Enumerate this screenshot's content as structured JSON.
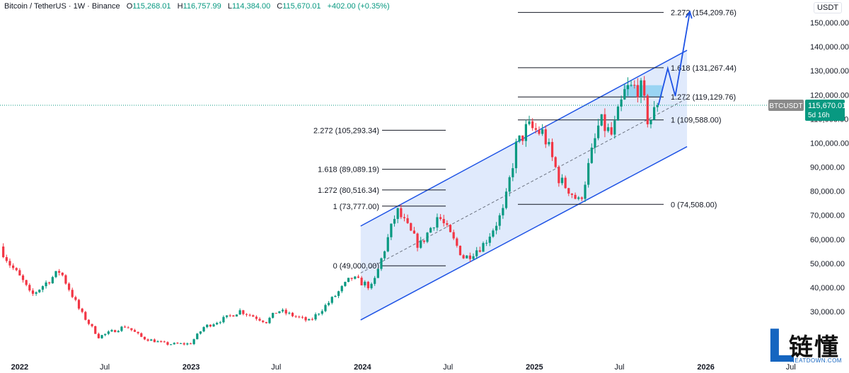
{
  "header": {
    "symbol": "Bitcoin / TetherUS · 1W · Binance",
    "open_label": "O",
    "open": "115,268.01",
    "high_label": "H",
    "high": "116,757.99",
    "low_label": "L",
    "low": "114,384.00",
    "close_label": "C",
    "close": "115,670.01",
    "change": "+402.00 (+0.35%)"
  },
  "currency": "USDT",
  "price_tag": {
    "symbol": "BTCUSDT",
    "price": "115,670.01",
    "countdown": "5d 16h"
  },
  "logo": {
    "text": "链懂",
    "domain": "NEATDOWN.COM"
  },
  "colors": {
    "up": "#089981",
    "down": "#f23645",
    "channel_line": "#1e53e5",
    "channel_fill": "#dbe6fb",
    "arrow": "#1e53e5",
    "zone": "#7ccbf0"
  },
  "chart_data": {
    "type": "candlestick",
    "title": "",
    "xlabel": "",
    "ylabel": "",
    "ylim": [
      20000,
      160000
    ],
    "yticks": [
      30000,
      40000,
      50000,
      60000,
      70000,
      80000,
      90000,
      100000,
      110000,
      120000,
      130000,
      140000,
      150000
    ],
    "ytick_labels": [
      "30,000.00",
      "40,000.00",
      "50,000.00",
      "60,000.00",
      "70,000.00",
      "80,000.00",
      "90,000.00",
      "100,000.00",
      "110,000.00",
      "120,000.00",
      "130,000.00",
      "140,000.00",
      "150,000.00"
    ],
    "xlim": [
      "2021-11-20",
      "2026-07-30"
    ],
    "xticks": [
      {
        "date": "2022-01-01",
        "label": "2022"
      },
      {
        "date": "2022-07-01",
        "label": "Jul"
      },
      {
        "date": "2023-01-01",
        "label": "2023"
      },
      {
        "date": "2023-07-01",
        "label": "Jul"
      },
      {
        "date": "2024-01-01",
        "label": "2024"
      },
      {
        "date": "2024-07-01",
        "label": "Jul"
      },
      {
        "date": "2025-01-01",
        "label": "2025"
      },
      {
        "date": "2025-07-01",
        "label": "Jul"
      },
      {
        "date": "2026-01-01",
        "label": "2026"
      },
      {
        "date": "2026-07-01",
        "label": "Jul"
      }
    ],
    "price_path": [
      [
        "2021-11-20",
        57000
      ],
      [
        "2021-12-10",
        50000
      ],
      [
        "2022-01-10",
        42000
      ],
      [
        "2022-01-25",
        36500
      ],
      [
        "2022-03-28",
        47000
      ],
      [
        "2022-05-10",
        30000
      ],
      [
        "2022-06-18",
        19500
      ],
      [
        "2022-08-15",
        24000
      ],
      [
        "2022-09-20",
        19000
      ],
      [
        "2022-11-10",
        16500
      ],
      [
        "2022-12-30",
        16600
      ],
      [
        "2023-01-28",
        23500
      ],
      [
        "2023-03-18",
        27500
      ],
      [
        "2023-04-15",
        30300
      ],
      [
        "2023-06-10",
        25800
      ],
      [
        "2023-07-05",
        30500
      ],
      [
        "2023-09-10",
        25900
      ],
      [
        "2023-10-25",
        34500
      ],
      [
        "2023-12-08",
        44000
      ],
      [
        "2024-01-22",
        40000
      ],
      [
        "2024-03-14",
        72000
      ],
      [
        "2024-05-01",
        57000
      ],
      [
        "2024-06-10",
        70000
      ],
      [
        "2024-08-05",
        52000
      ],
      [
        "2024-09-15",
        58000
      ],
      [
        "2024-10-28",
        72000
      ],
      [
        "2024-11-22",
        98000
      ],
      [
        "2024-12-17",
        106500
      ],
      [
        "2025-01-20",
        104000
      ],
      [
        "2025-02-25",
        84000
      ],
      [
        "2025-03-15",
        81000
      ],
      [
        "2025-04-07",
        75000
      ],
      [
        "2025-05-20",
        109000
      ],
      [
        "2025-06-15",
        103000
      ],
      [
        "2025-07-14",
        122000
      ],
      [
        "2025-08-14",
        123500
      ],
      [
        "2025-09-01",
        108500
      ],
      [
        "2025-09-22",
        115670
      ]
    ],
    "last_close": 115670.01,
    "channel": {
      "upper": [
        [
          "2023-12-28",
          65500
        ],
        [
          "2025-11-22",
          138500
        ]
      ],
      "lower": [
        [
          "2023-12-28",
          26500
        ],
        [
          "2025-11-22",
          98500
        ]
      ],
      "mid": [
        [
          "2023-12-28",
          46000
        ],
        [
          "2025-11-22",
          118500
        ]
      ]
    },
    "fib_left": [
      {
        "label": "2.272 (105,293.34)",
        "price": 105293.34
      },
      {
        "label": "1.618 (89,089.19)",
        "price": 89089.19
      },
      {
        "label": "1.272 (80,516.34)",
        "price": 80516.34
      },
      {
        "label": "1 (73,777.00)",
        "price": 73777.0
      },
      {
        "label": "0 (49,000.00)",
        "price": 49000.0
      }
    ],
    "fib_right": [
      {
        "label": "2.272 (154,209.76)",
        "price": 154209.76
      },
      {
        "label": "1.618 (131,267.44)",
        "price": 131267.44
      },
      {
        "label": "1.272 (119,129.76)",
        "price": 119129.76
      },
      {
        "label": "1 (109,588.00)",
        "price": 109588.0
      },
      {
        "label": "0 (74,508.00)",
        "price": 74508.0
      }
    ],
    "projection_path": [
      [
        "2025-09-22",
        115670
      ],
      [
        "2025-10-12",
        131000
      ],
      [
        "2025-10-28",
        119500
      ],
      [
        "2025-11-28",
        154500
      ]
    ],
    "target_zone": {
      "from": "2025-07-10",
      "to": "2025-09-30",
      "low": 119000,
      "high": 124000
    }
  }
}
